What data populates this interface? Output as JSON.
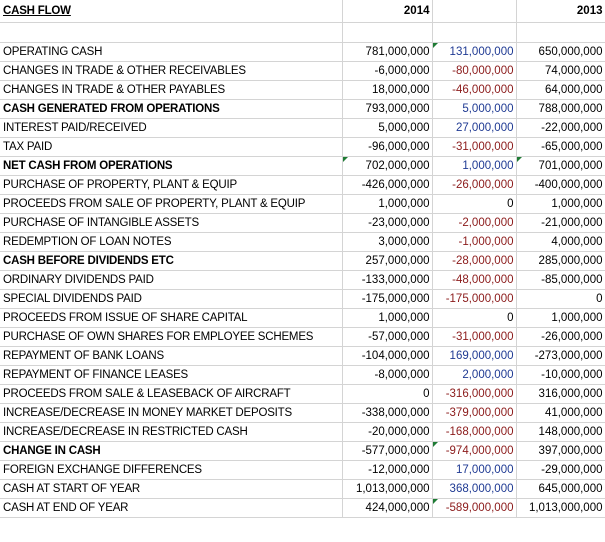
{
  "sheet": {
    "title": "CASH FLOW",
    "year_current": "2014",
    "year_prior": "2013",
    "rows": [
      {
        "label": "OPERATING CASH",
        "y2014": "781,000,000",
        "diff": "131,000,000",
        "y2013": "650,000,000",
        "bold": false,
        "tri_y2014": false,
        "tri_diff": true,
        "tri_y2013": false
      },
      {
        "label": "CHANGES IN TRADE & OTHER RECEIVABLES",
        "y2014": "-6,000,000",
        "diff": "-80,000,000",
        "y2013": "74,000,000",
        "bold": false,
        "tri_y2014": false,
        "tri_diff": false,
        "tri_y2013": false
      },
      {
        "label": "CHANGES IN TRADE & OTHER PAYABLES",
        "y2014": "18,000,000",
        "diff": "-46,000,000",
        "y2013": "64,000,000",
        "bold": false,
        "tri_y2014": false,
        "tri_diff": false,
        "tri_y2013": false
      },
      {
        "label": "CASH GENERATED FROM OPERATIONS",
        "y2014": "793,000,000",
        "diff": "5,000,000",
        "y2013": "788,000,000",
        "bold": true,
        "tri_y2014": false,
        "tri_diff": false,
        "tri_y2013": false
      },
      {
        "label": "INTEREST PAID/RECEIVED",
        "y2014": "5,000,000",
        "diff": "27,000,000",
        "y2013": "-22,000,000",
        "bold": false,
        "tri_y2014": false,
        "tri_diff": false,
        "tri_y2013": false
      },
      {
        "label": "TAX PAID",
        "y2014": "-96,000,000",
        "diff": "-31,000,000",
        "y2013": "-65,000,000",
        "bold": false,
        "tri_y2014": false,
        "tri_diff": false,
        "tri_y2013": false
      },
      {
        "label": "NET CASH FROM OPERATIONS",
        "y2014": "702,000,000",
        "diff": "1,000,000",
        "y2013": "701,000,000",
        "bold": true,
        "tri_y2014": true,
        "tri_diff": false,
        "tri_y2013": true
      },
      {
        "label": "PURCHASE OF PROPERTY, PLANT & EQUIP",
        "y2014": "-426,000,000",
        "diff": "-26,000,000",
        "y2013": "-400,000,000",
        "bold": false,
        "tri_y2014": false,
        "tri_diff": false,
        "tri_y2013": false
      },
      {
        "label": "PROCEEDS FROM SALE OF PROPERTY, PLANT & EQUIP",
        "y2014": "1,000,000",
        "diff": "0",
        "y2013": "1,000,000",
        "bold": false,
        "tri_y2014": false,
        "tri_diff": false,
        "tri_y2013": false
      },
      {
        "label": "PURCHASE OF INTANGIBLE ASSETS",
        "y2014": "-23,000,000",
        "diff": "-2,000,000",
        "y2013": "-21,000,000",
        "bold": false,
        "tri_y2014": false,
        "tri_diff": false,
        "tri_y2013": false
      },
      {
        "label": "REDEMPTION OF LOAN NOTES",
        "y2014": "3,000,000",
        "diff": "-1,000,000",
        "y2013": "4,000,000",
        "bold": false,
        "tri_y2014": false,
        "tri_diff": false,
        "tri_y2013": false
      },
      {
        "label": "CASH BEFORE DIVIDENDS ETC",
        "y2014": "257,000,000",
        "diff": "-28,000,000",
        "y2013": "285,000,000",
        "bold": true,
        "tri_y2014": false,
        "tri_diff": false,
        "tri_y2013": false
      },
      {
        "label": "ORDINARY DIVIDENDS PAID",
        "y2014": "-133,000,000",
        "diff": "-48,000,000",
        "y2013": "-85,000,000",
        "bold": false,
        "tri_y2014": false,
        "tri_diff": false,
        "tri_y2013": false
      },
      {
        "label": "SPECIAL DIVIDENDS PAID",
        "y2014": "-175,000,000",
        "diff": "-175,000,000",
        "y2013": "0",
        "bold": false,
        "tri_y2014": false,
        "tri_diff": false,
        "tri_y2013": false
      },
      {
        "label": "PROCEEDS FROM ISSUE OF SHARE CAPITAL",
        "y2014": "1,000,000",
        "diff": "0",
        "y2013": "1,000,000",
        "bold": false,
        "tri_y2014": false,
        "tri_diff": false,
        "tri_y2013": false
      },
      {
        "label": "PURCHASE OF OWN SHARES FOR EMPLOYEE SCHEMES",
        "y2014": "-57,000,000",
        "diff": "-31,000,000",
        "y2013": "-26,000,000",
        "bold": false,
        "tri_y2014": false,
        "tri_diff": false,
        "tri_y2013": false
      },
      {
        "label": "REPAYMENT OF BANK LOANS",
        "y2014": "-104,000,000",
        "diff": "169,000,000",
        "y2013": "-273,000,000",
        "bold": false,
        "tri_y2014": false,
        "tri_diff": false,
        "tri_y2013": false
      },
      {
        "label": "REPAYMENT OF FINANCE LEASES",
        "y2014": "-8,000,000",
        "diff": "2,000,000",
        "y2013": "-10,000,000",
        "bold": false,
        "tri_y2014": false,
        "tri_diff": false,
        "tri_y2013": false
      },
      {
        "label": "PROCEEDS FROM SALE & LEASEBACK OF AIRCRAFT",
        "y2014": "0",
        "diff": "-316,000,000",
        "y2013": "316,000,000",
        "bold": false,
        "tri_y2014": false,
        "tri_diff": false,
        "tri_y2013": false
      },
      {
        "label": "INCREASE/DECREASE IN MONEY MARKET DEPOSITS",
        "y2014": "-338,000,000",
        "diff": "-379,000,000",
        "y2013": "41,000,000",
        "bold": false,
        "tri_y2014": false,
        "tri_diff": false,
        "tri_y2013": false
      },
      {
        "label": "INCREASE/DECREASE IN RESTRICTED CASH",
        "y2014": "-20,000,000",
        "diff": "-168,000,000",
        "y2013": "148,000,000",
        "bold": false,
        "tri_y2014": false,
        "tri_diff": false,
        "tri_y2013": false
      },
      {
        "label": "CHANGE IN CASH",
        "y2014": "-577,000,000",
        "diff": "-974,000,000",
        "y2013": "397,000,000",
        "bold": true,
        "tri_y2014": false,
        "tri_diff": true,
        "tri_y2013": false
      },
      {
        "label": "FOREIGN EXCHANGE DIFFERENCES",
        "y2014": "-12,000,000",
        "diff": "17,000,000",
        "y2013": "-29,000,000",
        "bold": false,
        "tri_y2014": false,
        "tri_diff": false,
        "tri_y2013": false
      },
      {
        "label": "CASH AT START OF YEAR",
        "y2014": "1,013,000,000",
        "diff": "368,000,000",
        "y2013": "645,000,000",
        "bold": false,
        "tri_y2014": false,
        "tri_diff": false,
        "tri_y2013": false
      },
      {
        "label": "CASH AT END OF YEAR",
        "y2014": "424,000,000",
        "diff": "-589,000,000",
        "y2013": "1,013,000,000",
        "bold": false,
        "tri_y2014": false,
        "tri_diff": true,
        "tri_y2013": false
      }
    ]
  },
  "colors": {
    "positive_diff": "#1f3a93",
    "negative_diff": "#8b1a1a",
    "comment_marker": "#1e7b34",
    "gridline": "#d4d4d4"
  }
}
